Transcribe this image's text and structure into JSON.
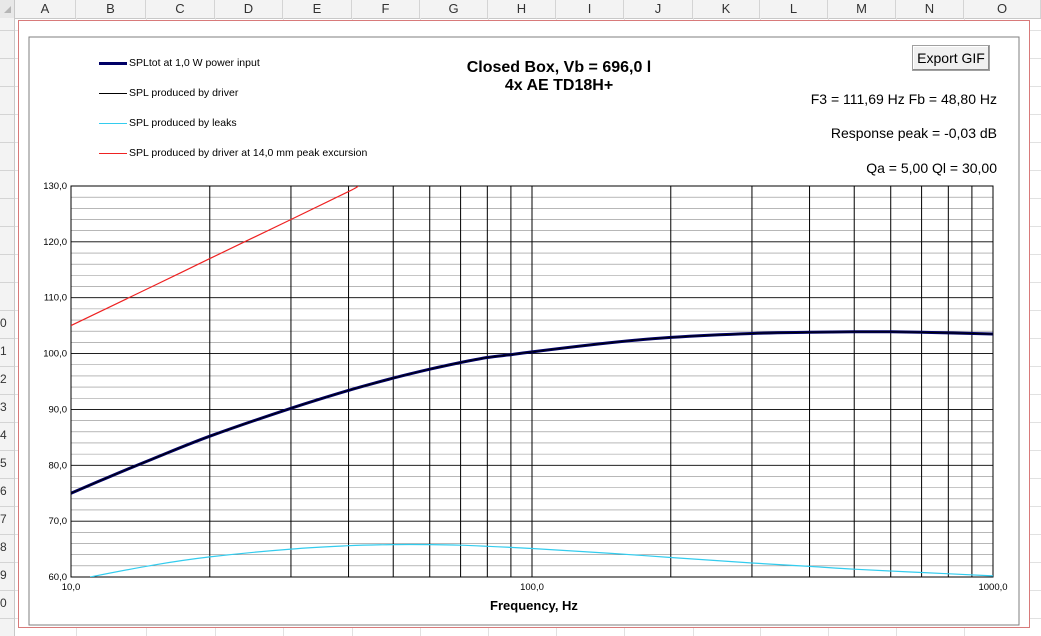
{
  "spreadsheet": {
    "columns": [
      "A",
      "B",
      "C",
      "D",
      "E",
      "F",
      "G",
      "H",
      "I",
      "J",
      "K",
      "L",
      "M",
      "N",
      "O"
    ],
    "rows": [
      "0",
      "1",
      "2",
      "3",
      "4",
      "5",
      "6",
      "7",
      "8",
      "9",
      "0"
    ]
  },
  "export_button": "Export GIF",
  "chart_title_line1": "Closed Box, Vb = 696,0 l",
  "chart_title_line2": "4x AE TD18H+",
  "info": {
    "f3_fb": "F3 = 111,69 Hz  Fb = 48,80 Hz",
    "response_peak": "Response peak = -0,03 dB",
    "q_values": "Qa = 5,00  Ql = 30,00"
  },
  "colors": {
    "spl_total": "#000066",
    "driver": "#000000",
    "leaks": "#33ccee",
    "excursion": "#ee2222"
  },
  "chart_data": {
    "type": "line",
    "title": "Closed Box, Vb = 696,0 l",
    "subtitle": "4x AE TD18H+",
    "xlabel": "Frequency, Hz",
    "ylabel": "",
    "x_scale": "log",
    "xlim": [
      10,
      1000
    ],
    "ylim": [
      60,
      130
    ],
    "x_tick_labels": [
      "10,0",
      "100,0",
      "1000,0"
    ],
    "x_ticks": [
      10,
      100,
      1000
    ],
    "y_tick_labels": [
      "60,0",
      "70,0",
      "80,0",
      "90,0",
      "100,0",
      "110,0",
      "120,0",
      "130,0"
    ],
    "y_ticks": [
      60,
      70,
      80,
      90,
      100,
      110,
      120,
      130
    ],
    "grid": true,
    "legend_position": "top-left",
    "series": [
      {
        "name": "SPLtot at 1,0 W power input",
        "x": [
          10,
          12,
          15,
          20,
          30,
          40,
          50,
          60,
          70,
          80,
          90,
          100,
          150,
          200,
          300,
          400,
          500,
          600,
          700,
          800,
          1000
        ],
        "y": [
          75.0,
          77.8,
          81.1,
          85.2,
          90.2,
          93.4,
          95.6,
          97.2,
          98.4,
          99.3,
          99.8,
          100.3,
          102.0,
          102.9,
          103.6,
          103.8,
          103.9,
          103.9,
          103.8,
          103.7,
          103.5
        ]
      },
      {
        "name": "SPL produced by driver",
        "x": [
          10,
          12,
          15,
          20,
          30,
          40,
          50,
          60,
          70,
          80,
          90,
          100,
          150,
          200,
          300,
          400,
          500,
          600,
          700,
          800,
          1000
        ],
        "y": [
          75.0,
          77.8,
          81.1,
          85.2,
          90.2,
          93.4,
          95.6,
          97.2,
          98.4,
          99.3,
          99.8,
          100.3,
          102.0,
          102.9,
          103.6,
          103.8,
          103.9,
          103.9,
          103.8,
          103.7,
          103.5
        ]
      },
      {
        "name": "SPL produced by leaks",
        "x": [
          11,
          15,
          20,
          30,
          40,
          50,
          60,
          70,
          80,
          100,
          150,
          200,
          300,
          400,
          500,
          700,
          1000
        ],
        "y": [
          60.0,
          62.1,
          63.6,
          65.0,
          65.6,
          65.8,
          65.8,
          65.7,
          65.5,
          65.1,
          64.2,
          63.5,
          62.5,
          61.9,
          61.4,
          60.8,
          60.2
        ]
      },
      {
        "name": "SPL produced by driver at 14,0 mm peak excursion",
        "x": [
          10,
          15,
          20,
          30,
          40,
          42
        ],
        "y": [
          105.0,
          112.0,
          117.0,
          124.0,
          129.0,
          130.0
        ]
      }
    ]
  }
}
